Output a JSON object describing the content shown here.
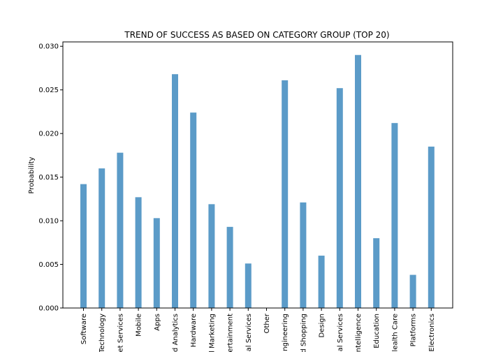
{
  "chart_data": {
    "type": "bar",
    "title": "TREND OF SUCCESS AS BASED ON CATEGORY GROUP (TOP 20)",
    "xlabel": "",
    "ylabel": "Probability",
    "ylim": [
      0,
      0.0305
    ],
    "yticks": [
      "0.000",
      "0.005",
      "0.010",
      "0.015",
      "0.020",
      "0.025",
      "0.030"
    ],
    "categories": [
      "Software",
      "Technology",
      "et Services",
      "Mobile",
      "Apps",
      "d Analytics",
      "Hardware",
      "l Marketing",
      "ertainment",
      "al Services",
      "Other",
      "ngineering",
      "d Shopping",
      "Design",
      "al Services",
      "ntelligence",
      "Education",
      "lealth Care",
      "Platforms",
      "Electronics"
    ],
    "values": [
      0.0142,
      0.016,
      0.0178,
      0.0127,
      0.0103,
      0.0268,
      0.0224,
      0.0119,
      0.0093,
      0.0051,
      0.0,
      0.0261,
      0.0121,
      0.006,
      0.0252,
      0.029,
      0.008,
      0.0212,
      0.0038,
      0.0185
    ],
    "bar_color": "#5b9bc8",
    "grid": false,
    "legend": "none"
  }
}
